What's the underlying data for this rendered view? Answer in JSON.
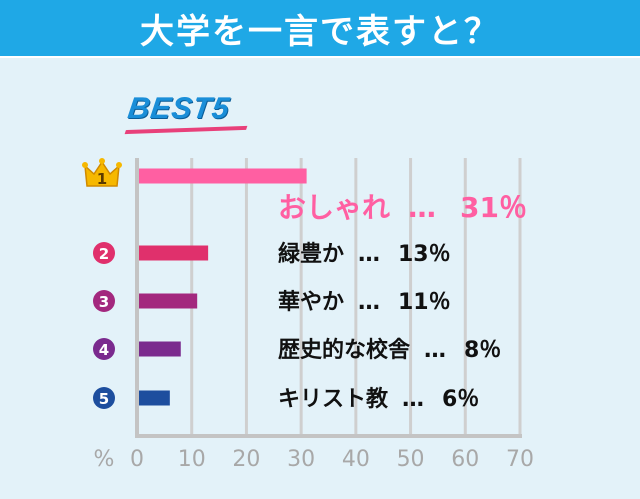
{
  "header": {
    "title": "大学を一言で表すと？"
  },
  "badge": {
    "text": "BEST5"
  },
  "axis": {
    "unit_label": "%",
    "ticks": [
      "0",
      "10",
      "20",
      "30",
      "40",
      "50",
      "60",
      "70"
    ]
  },
  "colors": {
    "header_bg": "#1fa8e6",
    "panel_bg": "#e3f2f9",
    "rank1": "#ff5fa2",
    "rank2": "#e0306c",
    "rank3": "#a3287e",
    "rank4": "#7a2a8e",
    "rank5": "#1d4e9e",
    "gold": "#f6b800"
  },
  "chart_data": {
    "type": "bar",
    "orientation": "horizontal",
    "xlim": [
      0,
      70
    ],
    "grid": true,
    "categories": [
      "おしゃれ",
      "緑豊か",
      "華やか",
      "歴史的な校舎",
      "キリスト教"
    ],
    "values": [
      31,
      13,
      11,
      8,
      6
    ],
    "rank_badges": [
      "1",
      "2",
      "3",
      "4",
      "5"
    ],
    "value_labels": [
      "31％",
      "13％",
      "11％",
      "8％",
      "6％"
    ],
    "separator": "…"
  }
}
